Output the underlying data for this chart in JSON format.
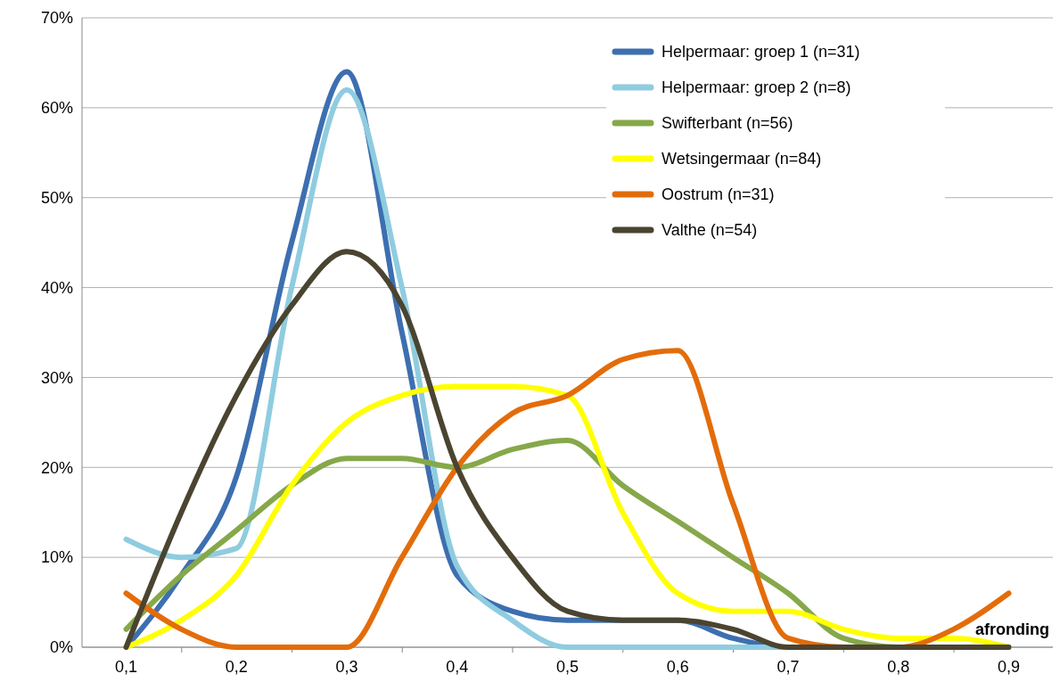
{
  "chart_data": {
    "type": "line",
    "x": [
      0.1,
      0.15,
      0.2,
      0.25,
      0.3,
      0.35,
      0.4,
      0.45,
      0.5,
      0.55,
      0.6,
      0.65,
      0.7,
      0.75,
      0.8,
      0.85,
      0.9
    ],
    "xlim": [
      0.06,
      0.94
    ],
    "xticks": [
      {
        "value": 0.1,
        "label": "0,1"
      },
      {
        "value": 0.2,
        "label": "0,2"
      },
      {
        "value": 0.3,
        "label": "0,3"
      },
      {
        "value": 0.4,
        "label": "0,4"
      },
      {
        "value": 0.5,
        "label": "0,5"
      },
      {
        "value": 0.6,
        "label": "0,6"
      },
      {
        "value": 0.7,
        "label": "0,7"
      },
      {
        "value": 0.8,
        "label": "0,8"
      },
      {
        "value": 0.9,
        "label": "0,9"
      }
    ],
    "ylim": [
      0,
      70
    ],
    "yticks": [
      {
        "value": 0,
        "label": "0%"
      },
      {
        "value": 10,
        "label": "10%"
      },
      {
        "value": 20,
        "label": "20%"
      },
      {
        "value": 30,
        "label": "30%"
      },
      {
        "value": 40,
        "label": "40%"
      },
      {
        "value": 50,
        "label": "50%"
      },
      {
        "value": 60,
        "label": "60%"
      },
      {
        "value": 70,
        "label": "70%"
      }
    ],
    "grid": "y",
    "legend": "top right",
    "marker": "none",
    "line_style": "solid",
    "annotations": [
      "afronding"
    ],
    "series": [
      {
        "name": "Helpermaar: groep 1 (n=31)",
        "color": "#3d6fb0",
        "values": [
          0,
          8,
          19,
          45,
          64,
          35,
          8,
          4,
          3,
          3,
          3,
          1,
          0,
          0,
          null,
          null,
          null
        ]
      },
      {
        "name": "Helpermaar: groep 2 (n=8)",
        "color": "#8fcce0",
        "values": [
          12,
          10,
          11,
          40,
          62,
          40,
          9,
          3,
          0,
          0,
          0,
          0,
          0,
          0,
          null,
          null,
          null
        ]
      },
      {
        "name": "Swifterbant (n=56)",
        "color": "#86a84a",
        "values": [
          2,
          8,
          13,
          18,
          21,
          21,
          20,
          22,
          23,
          18,
          14,
          10,
          6,
          1,
          0,
          0,
          0
        ]
      },
      {
        "name": "Wetsingermaar (n=84)",
        "color": "#ffff00",
        "values": [
          0,
          3,
          8,
          18,
          25,
          28,
          29,
          29,
          28,
          15,
          6,
          4,
          4,
          2,
          1,
          1,
          0
        ]
      },
      {
        "name": "Oostrum (n=31)",
        "color": "#e36c0a",
        "values": [
          6,
          2,
          0,
          0,
          0,
          10,
          20,
          26,
          28,
          32,
          33,
          16,
          1,
          0,
          0,
          2,
          6
        ]
      },
      {
        "name": "Valthe (n=54)",
        "color": "#4a4430",
        "values": [
          0,
          15,
          28,
          38,
          44,
          38,
          20,
          10,
          4,
          3,
          3,
          2,
          0,
          0,
          0,
          0,
          0
        ]
      }
    ]
  }
}
